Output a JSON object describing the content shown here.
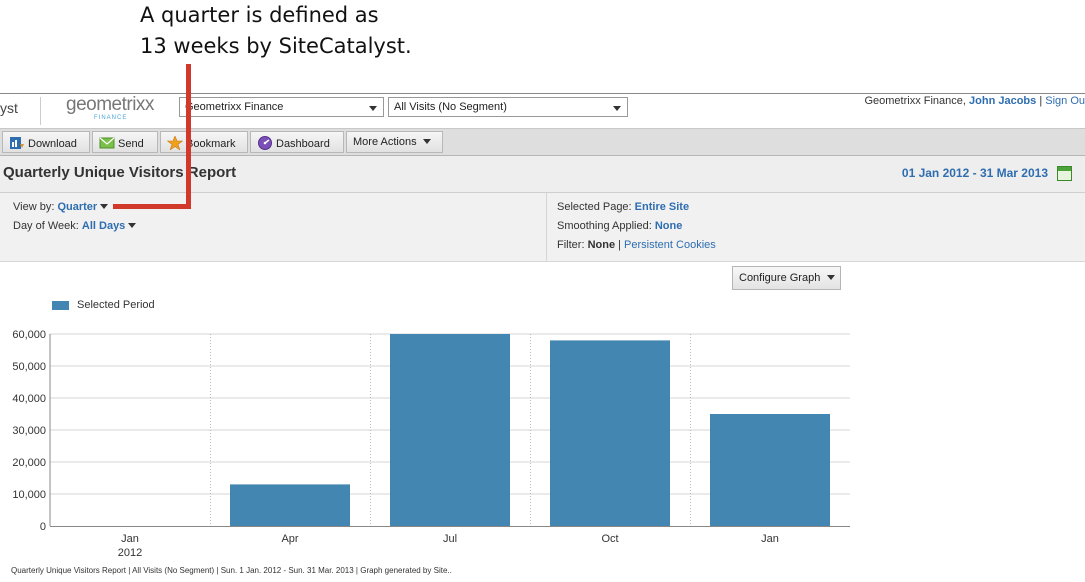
{
  "callout": {
    "line1": "A quarter is defined as",
    "line2": "13 weeks by SiteCatalyst."
  },
  "header": {
    "brand_fragment": "yst",
    "logo_text": "geometrixx",
    "logo_sub": "FINANCE",
    "suite_select": "Geometrixx Finance",
    "segment_select": "All Visits (No Segment)",
    "user_company": "Geometrixx Finance, ",
    "user_name": "John Jacobs",
    "separator": " | ",
    "sign_out": "Sign Ou"
  },
  "toolbar": {
    "download": "Download",
    "send": "Send",
    "bookmark": "Bookmark",
    "dashboard": "Dashboard",
    "more_actions": "More Actions"
  },
  "report": {
    "title": "Quarterly Unique Visitors Report",
    "date_range": "01 Jan 2012 - 31 Mar 2013"
  },
  "options": {
    "view_by_label": "View by: ",
    "view_by_value": "Quarter",
    "dow_label": "Day of Week: ",
    "dow_value": "All Days",
    "page_label": "Selected Page: ",
    "page_value": "Entire Site",
    "smoothing_label": "Smoothing Applied: ",
    "smoothing_value": "None",
    "filter_label": "Filter: ",
    "filter_value": "None",
    "filter_sep": " | ",
    "filter_link": "Persistent Cookies"
  },
  "configure_graph": "Configure Graph",
  "legend_label": "Selected Period",
  "chart_data": {
    "type": "bar",
    "categories": [
      "Jan\n2012",
      "Apr",
      "Jul",
      "Oct",
      "Jan"
    ],
    "series": [
      {
        "name": "Selected Period",
        "values": [
          0,
          13000,
          60000,
          58000,
          35000
        ],
        "color": "#4386b2"
      }
    ],
    "ylim": [
      0,
      60000
    ],
    "yticks": [
      "0",
      "10,000",
      "20,000",
      "30,000",
      "40,000",
      "50,000",
      "60,000"
    ],
    "grid": true
  },
  "caption": "Quarterly Unique Visitors Report | All Visits (No Segment) | Sun.  1 Jan. 2012 - Sun. 31 Mar. 2013 | Graph generated by Site.."
}
